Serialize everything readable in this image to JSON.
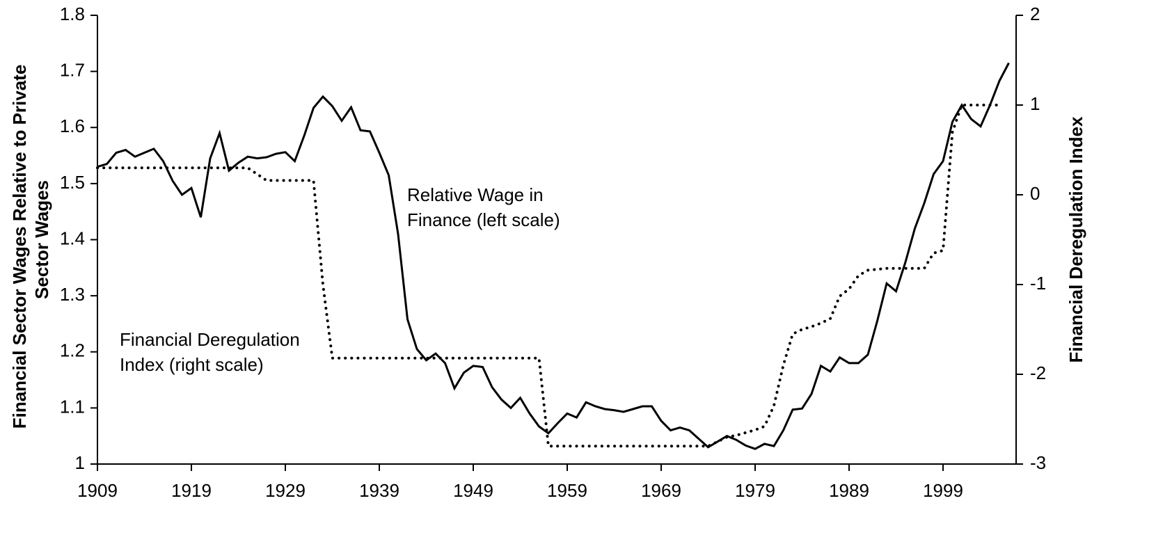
{
  "chart_data": {
    "type": "line",
    "y_label": [
      "Financial Sector Wages Relative to Private",
      "Sector Wages"
    ],
    "y2_label": "Financial Deregulation Index",
    "x": [
      1909,
      1910,
      1911,
      1912,
      1913,
      1914,
      1915,
      1916,
      1917,
      1918,
      1919,
      1920,
      1921,
      1922,
      1923,
      1924,
      1925,
      1926,
      1927,
      1928,
      1929,
      1930,
      1931,
      1932,
      1933,
      1934,
      1935,
      1936,
      1937,
      1938,
      1939,
      1940,
      1941,
      1942,
      1943,
      1944,
      1945,
      1946,
      1947,
      1948,
      1949,
      1950,
      1951,
      1952,
      1953,
      1954,
      1955,
      1956,
      1957,
      1958,
      1959,
      1960,
      1961,
      1962,
      1963,
      1964,
      1965,
      1966,
      1967,
      1968,
      1969,
      1970,
      1971,
      1972,
      1973,
      1974,
      1975,
      1976,
      1977,
      1978,
      1979,
      1980,
      1981,
      1982,
      1983,
      1984,
      1985,
      1986,
      1987,
      1988,
      1989,
      1990,
      1991,
      1992,
      1993,
      1994,
      1995,
      1996,
      1997,
      1998,
      1999,
      2000,
      2001,
      2002,
      2003,
      2004,
      2005,
      2006
    ],
    "xlim": [
      1909,
      2007
    ],
    "xticks": [
      1909,
      1919,
      1929,
      1939,
      1949,
      1959,
      1969,
      1979,
      1989,
      1999
    ],
    "ylim": [
      1,
      1.8
    ],
    "yticks": [
      1,
      1.1,
      1.2,
      1.3,
      1.4,
      1.5,
      1.6,
      1.7,
      1.8
    ],
    "y2lim": [
      -3,
      2
    ],
    "y2ticks": [
      -3,
      -2,
      -1,
      0,
      1,
      2
    ],
    "series": [
      {
        "name": "Relative Wage in Finance (left scale)",
        "color": "#000000",
        "style": "solid",
        "values": [
          1.53,
          1.535,
          1.555,
          1.56,
          1.548,
          1.555,
          1.562,
          1.54,
          1.505,
          1.48,
          1.492,
          1.44,
          1.545,
          1.59,
          1.523,
          1.537,
          1.548,
          1.545,
          1.547,
          1.553,
          1.556,
          1.54,
          1.585,
          1.635,
          1.655,
          1.638,
          1.612,
          1.636,
          1.595,
          1.593,
          1.555,
          1.515,
          1.41,
          1.258,
          1.205,
          1.185,
          1.197,
          1.18,
          1.135,
          1.163,
          1.175,
          1.173,
          1.137,
          1.115,
          1.1,
          1.118,
          1.09,
          1.067,
          1.055,
          1.073,
          1.09,
          1.083,
          1.11,
          1.103,
          1.098,
          1.096,
          1.093,
          1.098,
          1.103,
          1.103,
          1.077,
          1.06,
          1.065,
          1.06,
          1.045,
          1.03,
          1.04,
          1.05,
          1.043,
          1.033,
          1.027,
          1.036,
          1.032,
          1.06,
          1.097,
          1.099,
          1.125,
          1.175,
          1.165,
          1.19,
          1.18,
          1.18,
          1.195,
          1.255,
          1.322,
          1.308,
          1.36,
          1.42,
          1.465,
          1.517,
          1.54,
          1.61,
          1.64,
          1.615,
          1.602,
          1.64,
          1.683,
          1.715
        ]
      },
      {
        "name": "Financial Deregulation Index (right scale)",
        "color": "#000000",
        "style": "dotted",
        "axis": "y2",
        "values": [
          0.3,
          0.3,
          0.3,
          0.3,
          0.3,
          0.3,
          0.3,
          0.3,
          0.3,
          0.3,
          0.3,
          0.3,
          0.3,
          0.3,
          0.3,
          0.3,
          0.3,
          0.23,
          0.16,
          0.16,
          0.16,
          0.16,
          0.16,
          0.16,
          -1.0,
          -1.82,
          -1.82,
          -1.82,
          -1.82,
          -1.82,
          -1.82,
          -1.82,
          -1.82,
          -1.82,
          -1.82,
          -1.82,
          -1.82,
          -1.82,
          -1.82,
          -1.82,
          -1.82,
          -1.82,
          -1.82,
          -1.82,
          -1.82,
          -1.82,
          -1.82,
          -1.82,
          -2.8,
          -2.8,
          -2.8,
          -2.8,
          -2.8,
          -2.8,
          -2.8,
          -2.8,
          -2.8,
          -2.8,
          -2.8,
          -2.8,
          -2.8,
          -2.8,
          -2.8,
          -2.8,
          -2.8,
          -2.8,
          -2.75,
          -2.7,
          -2.68,
          -2.65,
          -2.62,
          -2.58,
          -2.35,
          -1.9,
          -1.55,
          -1.5,
          -1.47,
          -1.43,
          -1.38,
          -1.13,
          -1.05,
          -0.9,
          -0.84,
          -0.83,
          -0.82,
          -0.82,
          -0.82,
          -0.82,
          -0.82,
          -0.65,
          -0.62,
          0.7,
          1.0,
          1.0,
          1.0,
          1.0,
          1.0,
          null
        ]
      }
    ],
    "annotations": [
      {
        "lines": [
          "Relative Wage in",
          "Finance (left scale)"
        ]
      },
      {
        "lines": [
          "Financial Deregulation",
          "Index (right scale)"
        ]
      }
    ]
  }
}
